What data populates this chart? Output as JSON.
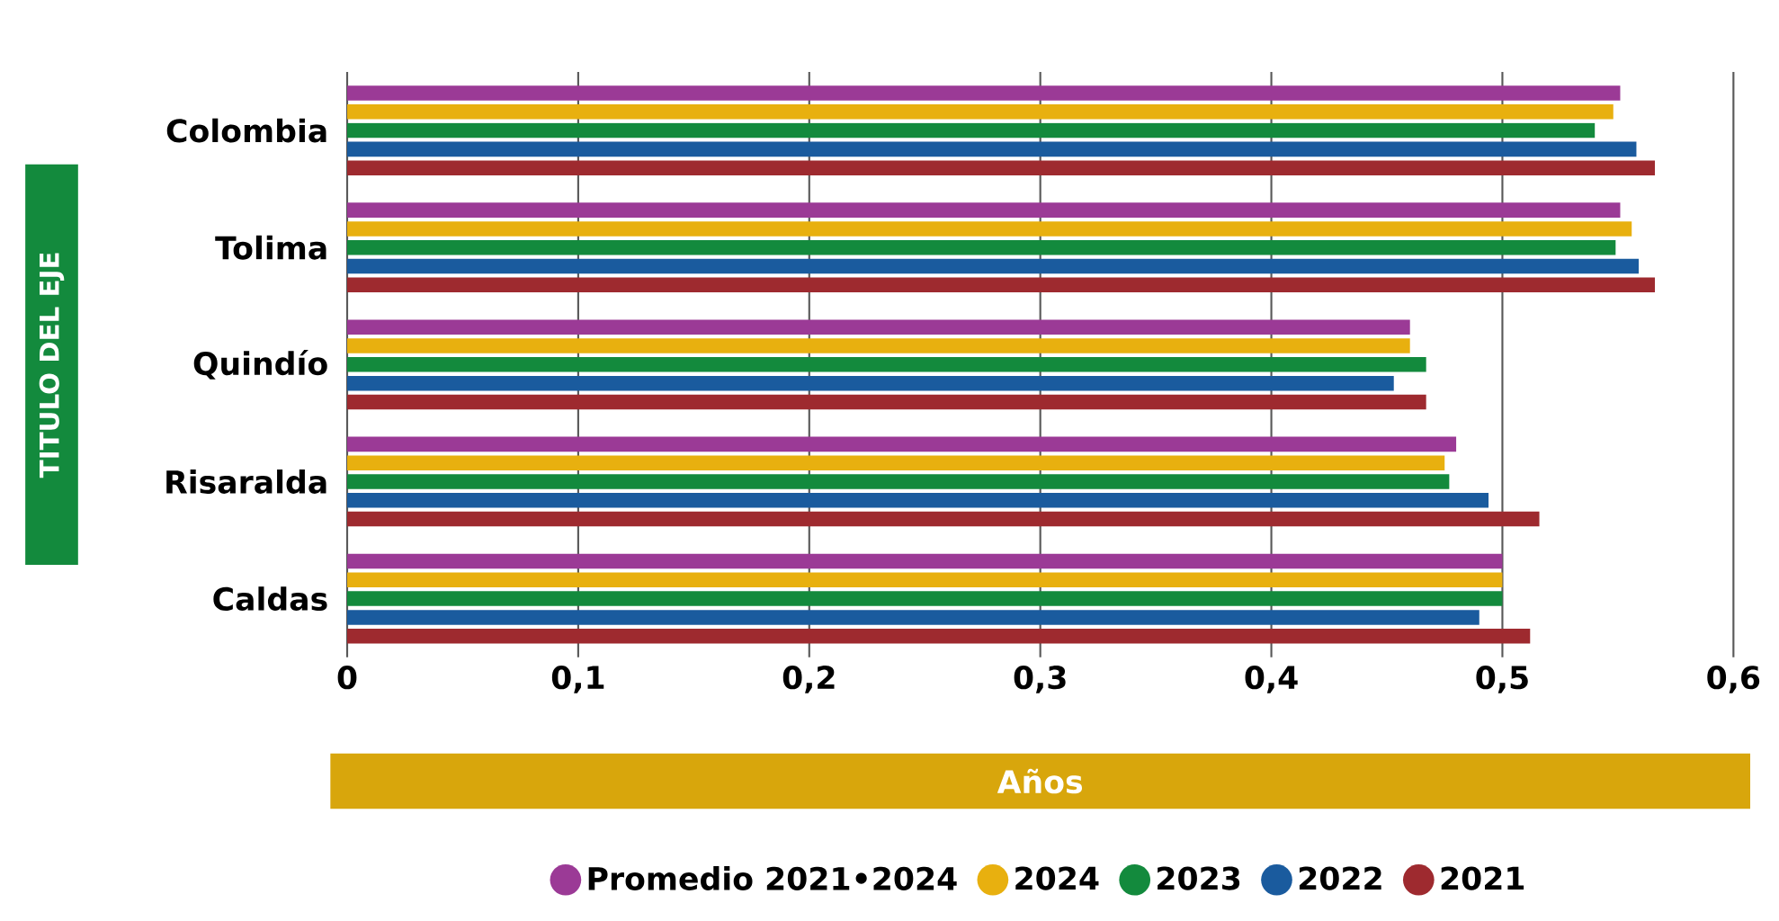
{
  "chart_data": {
    "type": "bar",
    "orientation": "horizontal",
    "xlabel": "Años",
    "ylabel": "TITULO DEL EJE",
    "categories": [
      "Colombia",
      "Tolima",
      "Quindío",
      "Risaralda",
      "Caldas"
    ],
    "series": [
      {
        "name": "Promedio 2021•2024",
        "color": "#9b3a96",
        "values": [
          0.551,
          0.551,
          0.46,
          0.48,
          0.5
        ]
      },
      {
        "name": "2024",
        "color": "#e8b00f",
        "values": [
          0.548,
          0.556,
          0.46,
          0.475,
          0.5
        ]
      },
      {
        "name": "2023",
        "color": "#138a3d",
        "values": [
          0.54,
          0.549,
          0.467,
          0.477,
          0.5
        ]
      },
      {
        "name": "2022",
        "color": "#1a5b9e",
        "values": [
          0.558,
          0.559,
          0.453,
          0.494,
          0.49
        ]
      },
      {
        "name": "2021",
        "color": "#9e2a2f",
        "values": [
          0.566,
          0.566,
          0.467,
          0.516,
          0.512
        ]
      }
    ],
    "xlim": [
      0,
      0.6
    ],
    "xticks": [
      {
        "value": 0,
        "label": "0"
      },
      {
        "value": 0.1,
        "label": "0,1"
      },
      {
        "value": 0.2,
        "label": "0,2"
      },
      {
        "value": 0.3,
        "label": "0,3"
      },
      {
        "value": 0.4,
        "label": "0,4"
      },
      {
        "value": 0.5,
        "label": "0,5"
      },
      {
        "value": 0.6,
        "label": "0,6"
      }
    ],
    "grid": "x",
    "legend": "bottom"
  }
}
